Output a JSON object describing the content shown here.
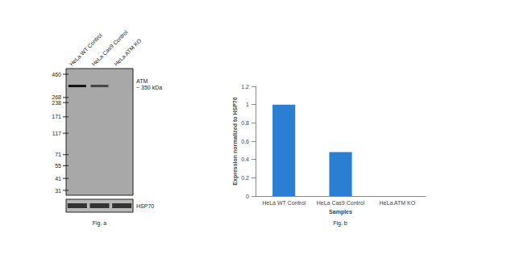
{
  "chart_data": {
    "type": "bar",
    "categories": [
      "HeLa WT Control",
      "HeLa Cas9 Control",
      "HeLa ATM KO"
    ],
    "values": [
      1,
      0.48,
      0
    ],
    "color": "#2b7fd3",
    "ylim": [
      0,
      1.2
    ],
    "yticks": [
      0,
      0.2,
      0.4,
      0.6,
      0.8,
      1,
      1.2
    ],
    "x_label": "Samples",
    "y_label": "Expression normalized to HSP70",
    "caption": "Fig. b",
    "grid": false
  },
  "blot": {
    "caption": "Fig. a",
    "lanes": [
      "HeLa WT Control",
      "HeLa Cas9 Control",
      "HeLa ATM KO"
    ],
    "markers_kda": [
      460,
      268,
      238,
      171,
      117,
      71,
      55,
      41,
      31
    ],
    "target": {
      "name": "ATM",
      "size_label": "~ 350 kDa",
      "size_kda": 350
    },
    "loading_control": "HSP70"
  }
}
